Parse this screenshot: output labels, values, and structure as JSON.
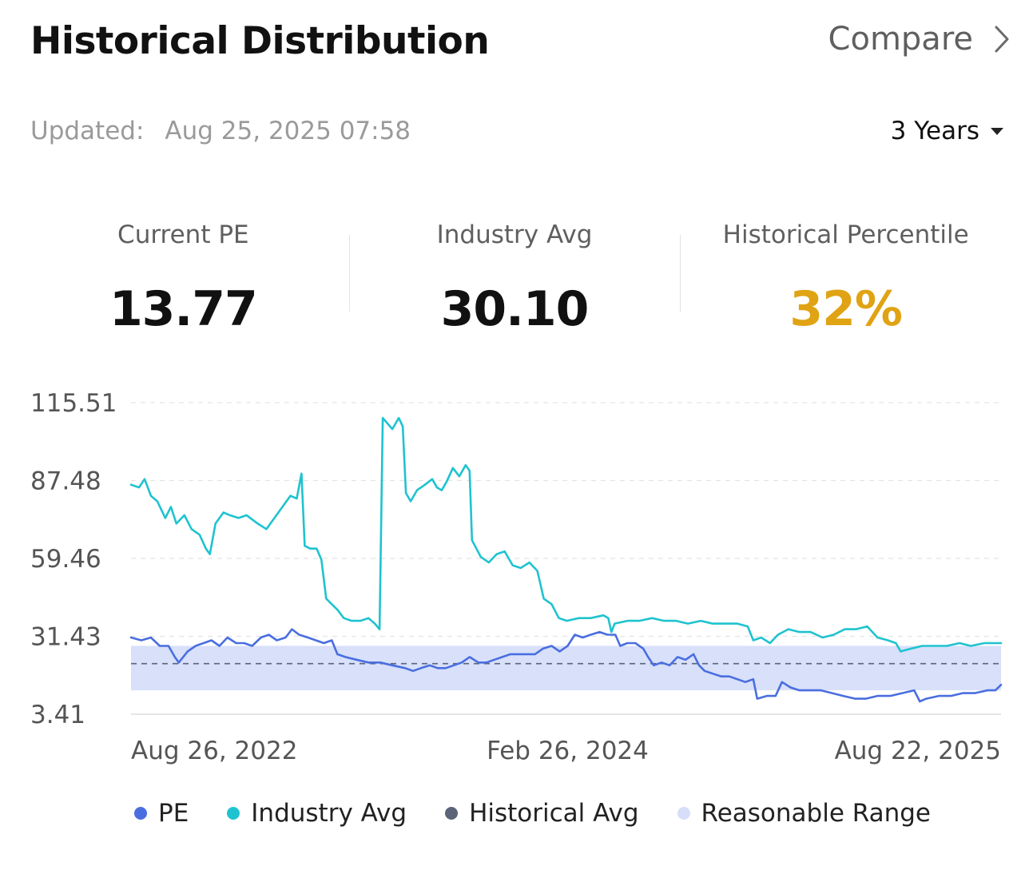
{
  "header": {
    "title": "Historical Distribution",
    "compare_label": "Compare",
    "compare_icon": "chevron-right-icon"
  },
  "updated": {
    "label": "Updated:",
    "timestamp": "Aug 25, 2025 07:58"
  },
  "range_select": {
    "selected": "3 Years",
    "icon": "caret-down-icon"
  },
  "stats": [
    {
      "label": "Current PE",
      "value": "13.77"
    },
    {
      "label": "Industry Avg",
      "value": "30.10"
    },
    {
      "label": "Historical Percentile",
      "value": "32%"
    }
  ],
  "colors": {
    "pe": "#4a6ee0",
    "industry_avg": "#1fc3cf",
    "historical_avg": "#5b6478",
    "reasonable_range": "#d6defa",
    "percentile": "#e0a313"
  },
  "legend": [
    {
      "label": "PE",
      "color": "#4a6ee0"
    },
    {
      "label": "Industry Avg",
      "color": "#1fc3cf"
    },
    {
      "label": "Historical Avg",
      "color": "#5b6478"
    },
    {
      "label": "Reasonable Range",
      "color": "#d6defa"
    }
  ],
  "chart_data": {
    "type": "line",
    "y_ticks": [
      "115.51",
      "87.48",
      "59.46",
      "31.43",
      "3.41"
    ],
    "ylim": [
      3.41,
      115.51
    ],
    "x_tick_labels": [
      "Aug 26, 2022",
      "Feb 26, 2024",
      "Aug 22, 2025"
    ],
    "x_range": [
      "2022-08-26",
      "2025-08-22"
    ],
    "grid": true,
    "legend_position": "bottom",
    "historical_avg": 21.6,
    "reasonable_range": [
      12.0,
      28.0
    ],
    "series": [
      {
        "name": "Industry Avg",
        "points": [
          [
            "2022-08-26",
            86
          ],
          [
            "2022-09-05",
            85
          ],
          [
            "2022-09-12",
            88
          ],
          [
            "2022-09-20",
            82
          ],
          [
            "2022-09-28",
            80
          ],
          [
            "2022-10-08",
            74
          ],
          [
            "2022-10-15",
            78
          ],
          [
            "2022-10-22",
            72
          ],
          [
            "2022-11-01",
            75
          ],
          [
            "2022-11-10",
            70
          ],
          [
            "2022-11-20",
            68
          ],
          [
            "2022-11-28",
            63
          ],
          [
            "2022-12-03",
            61
          ],
          [
            "2022-12-10",
            72
          ],
          [
            "2022-12-20",
            76
          ],
          [
            "2022-12-28",
            75
          ],
          [
            "2023-01-08",
            74
          ],
          [
            "2023-01-18",
            75
          ],
          [
            "2023-02-01",
            72
          ],
          [
            "2023-02-12",
            70
          ],
          [
            "2023-02-22",
            74
          ],
          [
            "2023-03-04",
            78
          ],
          [
            "2023-03-14",
            82
          ],
          [
            "2023-03-22",
            81
          ],
          [
            "2023-03-28",
            90
          ],
          [
            "2023-04-01",
            64
          ],
          [
            "2023-04-08",
            63
          ],
          [
            "2023-04-16",
            63
          ],
          [
            "2023-04-22",
            59
          ],
          [
            "2023-04-28",
            45
          ],
          [
            "2023-05-05",
            43
          ],
          [
            "2023-05-12",
            41
          ],
          [
            "2023-05-20",
            38
          ],
          [
            "2023-05-30",
            37
          ],
          [
            "2023-06-10",
            37
          ],
          [
            "2023-06-20",
            38
          ],
          [
            "2023-06-28",
            36
          ],
          [
            "2023-07-04",
            34
          ],
          [
            "2023-07-08",
            110
          ],
          [
            "2023-07-14",
            108
          ],
          [
            "2023-07-20",
            106
          ],
          [
            "2023-07-28",
            110
          ],
          [
            "2023-08-02",
            107
          ],
          [
            "2023-08-06",
            83
          ],
          [
            "2023-08-12",
            80
          ],
          [
            "2023-08-20",
            84
          ],
          [
            "2023-08-30",
            86
          ],
          [
            "2023-09-08",
            88
          ],
          [
            "2023-09-14",
            85
          ],
          [
            "2023-09-20",
            84
          ],
          [
            "2023-09-26",
            87
          ],
          [
            "2023-10-04",
            92
          ],
          [
            "2023-10-12",
            89
          ],
          [
            "2023-10-20",
            93
          ],
          [
            "2023-10-25",
            91
          ],
          [
            "2023-10-28",
            66
          ],
          [
            "2023-11-08",
            60
          ],
          [
            "2023-11-18",
            58
          ],
          [
            "2023-11-28",
            61
          ],
          [
            "2023-12-08",
            62
          ],
          [
            "2023-12-18",
            57
          ],
          [
            "2023-12-28",
            56
          ],
          [
            "2024-01-08",
            58
          ],
          [
            "2024-01-18",
            55
          ],
          [
            "2024-01-26",
            45
          ],
          [
            "2024-02-05",
            43
          ],
          [
            "2024-02-14",
            38
          ],
          [
            "2024-02-24",
            37
          ],
          [
            "2024-03-10",
            38
          ],
          [
            "2024-03-25",
            38
          ],
          [
            "2024-04-10",
            39
          ],
          [
            "2024-04-16",
            38
          ],
          [
            "2024-04-20",
            33
          ],
          [
            "2024-04-24",
            36
          ],
          [
            "2024-05-10",
            37
          ],
          [
            "2024-05-25",
            37
          ],
          [
            "2024-06-10",
            38
          ],
          [
            "2024-06-25",
            37
          ],
          [
            "2024-07-10",
            37
          ],
          [
            "2024-07-25",
            36
          ],
          [
            "2024-08-10",
            37
          ],
          [
            "2024-08-25",
            36
          ],
          [
            "2024-09-10",
            36
          ],
          [
            "2024-09-25",
            36
          ],
          [
            "2024-10-08",
            35
          ],
          [
            "2024-10-15",
            30
          ],
          [
            "2024-10-25",
            31
          ],
          [
            "2024-11-05",
            29
          ],
          [
            "2024-11-15",
            32
          ],
          [
            "2024-11-28",
            34
          ],
          [
            "2024-12-12",
            33
          ],
          [
            "2024-12-26",
            33
          ],
          [
            "2025-01-10",
            31
          ],
          [
            "2025-01-24",
            32
          ],
          [
            "2025-02-07",
            34
          ],
          [
            "2025-02-21",
            34
          ],
          [
            "2025-03-07",
            35
          ],
          [
            "2025-03-20",
            31
          ],
          [
            "2025-04-02",
            30
          ],
          [
            "2025-04-12",
            29
          ],
          [
            "2025-04-18",
            26
          ],
          [
            "2025-05-01",
            27
          ],
          [
            "2025-05-15",
            28
          ],
          [
            "2025-06-01",
            28
          ],
          [
            "2025-06-15",
            28
          ],
          [
            "2025-07-01",
            29
          ],
          [
            "2025-07-15",
            28
          ],
          [
            "2025-08-01",
            29
          ],
          [
            "2025-08-10",
            29
          ],
          [
            "2025-08-22",
            29
          ]
        ]
      },
      {
        "name": "PE",
        "points": [
          [
            "2022-08-26",
            31
          ],
          [
            "2022-09-08",
            30
          ],
          [
            "2022-09-20",
            31
          ],
          [
            "2022-10-01",
            28
          ],
          [
            "2022-10-12",
            28
          ],
          [
            "2022-10-20",
            24
          ],
          [
            "2022-10-25",
            22
          ],
          [
            "2022-11-05",
            26
          ],
          [
            "2022-11-15",
            28
          ],
          [
            "2022-11-25",
            29
          ],
          [
            "2022-12-05",
            30
          ],
          [
            "2022-12-15",
            28
          ],
          [
            "2022-12-25",
            31
          ],
          [
            "2023-01-05",
            29
          ],
          [
            "2023-01-15",
            29
          ],
          [
            "2023-01-25",
            28
          ],
          [
            "2023-02-05",
            31
          ],
          [
            "2023-02-15",
            32
          ],
          [
            "2023-02-25",
            30
          ],
          [
            "2023-03-08",
            31
          ],
          [
            "2023-03-16",
            34
          ],
          [
            "2023-03-25",
            32
          ],
          [
            "2023-04-05",
            31
          ],
          [
            "2023-04-15",
            30
          ],
          [
            "2023-04-25",
            29
          ],
          [
            "2023-05-05",
            30
          ],
          [
            "2023-05-12",
            25
          ],
          [
            "2023-05-22",
            24
          ],
          [
            "2023-06-05",
            23
          ],
          [
            "2023-06-20",
            22
          ],
          [
            "2023-07-05",
            22
          ],
          [
            "2023-07-20",
            21
          ],
          [
            "2023-08-05",
            20
          ],
          [
            "2023-08-15",
            19
          ],
          [
            "2023-08-25",
            20
          ],
          [
            "2023-09-05",
            21
          ],
          [
            "2023-09-15",
            20
          ],
          [
            "2023-09-25",
            20
          ],
          [
            "2023-10-05",
            21
          ],
          [
            "2023-10-15",
            22
          ],
          [
            "2023-10-25",
            24
          ],
          [
            "2023-11-05",
            22
          ],
          [
            "2023-11-15",
            22
          ],
          [
            "2023-11-25",
            23
          ],
          [
            "2023-12-05",
            24
          ],
          [
            "2023-12-15",
            25
          ],
          [
            "2023-12-25",
            25
          ],
          [
            "2024-01-05",
            25
          ],
          [
            "2024-01-15",
            25
          ],
          [
            "2024-01-25",
            27
          ],
          [
            "2024-02-05",
            28
          ],
          [
            "2024-02-15",
            26
          ],
          [
            "2024-02-25",
            28
          ],
          [
            "2024-03-05",
            32
          ],
          [
            "2024-03-15",
            31
          ],
          [
            "2024-03-25",
            32
          ],
          [
            "2024-04-05",
            33
          ],
          [
            "2024-04-15",
            32
          ],
          [
            "2024-04-25",
            32
          ],
          [
            "2024-05-01",
            28
          ],
          [
            "2024-05-10",
            29
          ],
          [
            "2024-05-20",
            29
          ],
          [
            "2024-05-30",
            27
          ],
          [
            "2024-06-05",
            24
          ],
          [
            "2024-06-12",
            21
          ],
          [
            "2024-06-22",
            22
          ],
          [
            "2024-07-02",
            21
          ],
          [
            "2024-07-12",
            24
          ],
          [
            "2024-07-22",
            23
          ],
          [
            "2024-08-01",
            25
          ],
          [
            "2024-08-08",
            21
          ],
          [
            "2024-08-15",
            19
          ],
          [
            "2024-08-25",
            18
          ],
          [
            "2024-09-05",
            17
          ],
          [
            "2024-09-15",
            17
          ],
          [
            "2024-09-25",
            16
          ],
          [
            "2024-10-05",
            15
          ],
          [
            "2024-10-15",
            16
          ],
          [
            "2024-10-20",
            9
          ],
          [
            "2024-11-01",
            10
          ],
          [
            "2024-11-12",
            10
          ],
          [
            "2024-11-20",
            15
          ],
          [
            "2024-12-01",
            13
          ],
          [
            "2024-12-12",
            12
          ],
          [
            "2024-12-25",
            12
          ],
          [
            "2025-01-08",
            12
          ],
          [
            "2025-01-22",
            11
          ],
          [
            "2025-02-05",
            10
          ],
          [
            "2025-02-20",
            9
          ],
          [
            "2025-03-05",
            9
          ],
          [
            "2025-03-20",
            10
          ],
          [
            "2025-04-05",
            10
          ],
          [
            "2025-04-20",
            11
          ],
          [
            "2025-05-05",
            12
          ],
          [
            "2025-05-12",
            8
          ],
          [
            "2025-05-20",
            9
          ],
          [
            "2025-06-05",
            10
          ],
          [
            "2025-06-20",
            10
          ],
          [
            "2025-07-05",
            11
          ],
          [
            "2025-07-20",
            11
          ],
          [
            "2025-08-05",
            12
          ],
          [
            "2025-08-15",
            12
          ],
          [
            "2025-08-22",
            14
          ]
        ]
      }
    ]
  }
}
